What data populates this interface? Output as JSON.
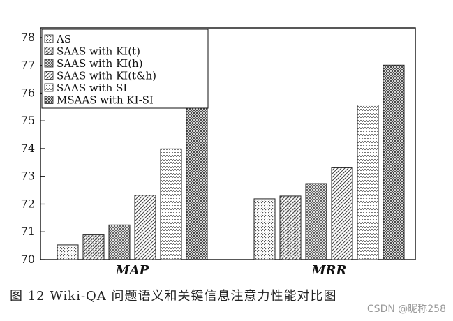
{
  "chart_data": {
    "type": "bar",
    "categories": [
      "MAP",
      "MRR"
    ],
    "series": [
      {
        "name": "AS",
        "values": [
          70.53,
          72.19
        ]
      },
      {
        "name": "SAAS with KI(t)",
        "values": [
          70.89,
          72.29
        ]
      },
      {
        "name": "SAAS with KI(h)",
        "values": [
          71.25,
          72.74
        ]
      },
      {
        "name": "SAAS with KI(t&h)",
        "values": [
          72.32,
          73.31
        ]
      },
      {
        "name": "SAAS with SI",
        "values": [
          73.99,
          75.57
        ]
      },
      {
        "name": "MSAAS with KI-SI",
        "values": [
          75.49,
          77.01
        ]
      }
    ],
    "yticks": [
      70,
      71,
      72,
      73,
      74,
      75,
      76,
      77,
      78
    ],
    "ylim": [
      70,
      78.35
    ],
    "grid": false,
    "legend_position": "top-left"
  },
  "caption": "图 12   Wiki-QA 问题语义和关键信息注意力性能对比图",
  "watermark": "CSDN @昵称258"
}
